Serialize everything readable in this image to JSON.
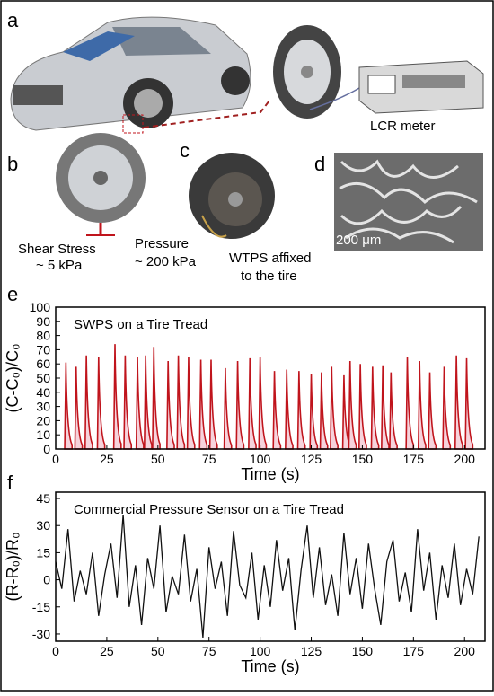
{
  "panels": {
    "a": {
      "label": "a",
      "meter": "LCR meter"
    },
    "b": {
      "label": "b",
      "shear": "Shear Stress",
      "shear_value": "~ 5 kPa",
      "pressure": "Pressure",
      "pressure_value": "~ 200 kPa"
    },
    "c": {
      "label": "c",
      "caption_1": "WTPS affixed",
      "caption_2": "to the tire"
    },
    "d": {
      "label": "d",
      "scale": "200 μm"
    },
    "e": {
      "label": "e"
    },
    "f": {
      "label": "f"
    }
  },
  "chart_data": [
    {
      "type": "spike",
      "annotation": "SWPS on a Tire Tread",
      "xlabel": "Time (s)",
      "ylabel": "(C-C₀)/C₀",
      "color": "#c0141c",
      "fill": "#f6d3dc",
      "x": [
        5,
        10,
        15,
        21,
        29,
        34,
        40,
        44,
        48,
        55,
        60,
        65,
        71,
        76,
        83,
        89,
        95,
        100,
        107,
        113,
        119,
        125,
        130,
        135,
        141,
        144,
        149,
        155,
        160,
        164,
        172,
        178,
        183,
        190,
        196,
        201
      ],
      "values": [
        61,
        58,
        66,
        65,
        74,
        66,
        65,
        66,
        72,
        62,
        66,
        65,
        63,
        63,
        57,
        62,
        64,
        65,
        55,
        56,
        55,
        53,
        54,
        58,
        52,
        62,
        60,
        58,
        59,
        54,
        65,
        62,
        54,
        58,
        66,
        64
      ],
      "xlim": [
        0,
        210
      ],
      "xticks": [
        0,
        25,
        50,
        75,
        100,
        125,
        150,
        175,
        200
      ],
      "ylim": [
        0,
        100
      ],
      "yticks": [
        0,
        10,
        20,
        30,
        40,
        50,
        60,
        70,
        80,
        90,
        100
      ]
    },
    {
      "type": "line",
      "annotation": "Commercial Pressure Sensor on a Tire Tread",
      "xlabel": "Time (s)",
      "ylabel": "(R-R₀)/R₀",
      "color": "#111111",
      "x": [
        0,
        3,
        6,
        9,
        12,
        15,
        18,
        21,
        24,
        27,
        30,
        33,
        36,
        39,
        42,
        45,
        48,
        51,
        54,
        57,
        60,
        63,
        66,
        69,
        72,
        75,
        78,
        81,
        84,
        87,
        90,
        93,
        96,
        99,
        102,
        105,
        108,
        111,
        114,
        117,
        120,
        123,
        126,
        129,
        132,
        135,
        138,
        141,
        144,
        147,
        150,
        153,
        156,
        159,
        162,
        165,
        168,
        171,
        174,
        177,
        180,
        183,
        186,
        189,
        192,
        195,
        198,
        201,
        204,
        207
      ],
      "values": [
        10,
        -5,
        28,
        -12,
        5,
        -8,
        15,
        -20,
        3,
        20,
        -10,
        36,
        -15,
        8,
        -25,
        12,
        -5,
        30,
        -18,
        2,
        -8,
        25,
        -12,
        6,
        -32,
        18,
        -5,
        10,
        -20,
        27,
        -3,
        -10,
        15,
        -22,
        8,
        -15,
        22,
        -6,
        12,
        -28,
        5,
        30,
        -10,
        18,
        -14,
        3,
        -20,
        26,
        -8,
        12,
        -16,
        20,
        -5,
        -25,
        10,
        22,
        -12,
        4,
        -18,
        28,
        -6,
        15,
        -22,
        8,
        -10,
        20,
        -14,
        6,
        -8,
        24
      ],
      "xlim": [
        0,
        210
      ],
      "xticks": [
        0,
        25,
        50,
        75,
        100,
        125,
        150,
        175,
        200
      ],
      "ylim": [
        -34,
        48.5
      ],
      "yticks": [
        -30,
        -15,
        0,
        15,
        30,
        45
      ]
    }
  ]
}
